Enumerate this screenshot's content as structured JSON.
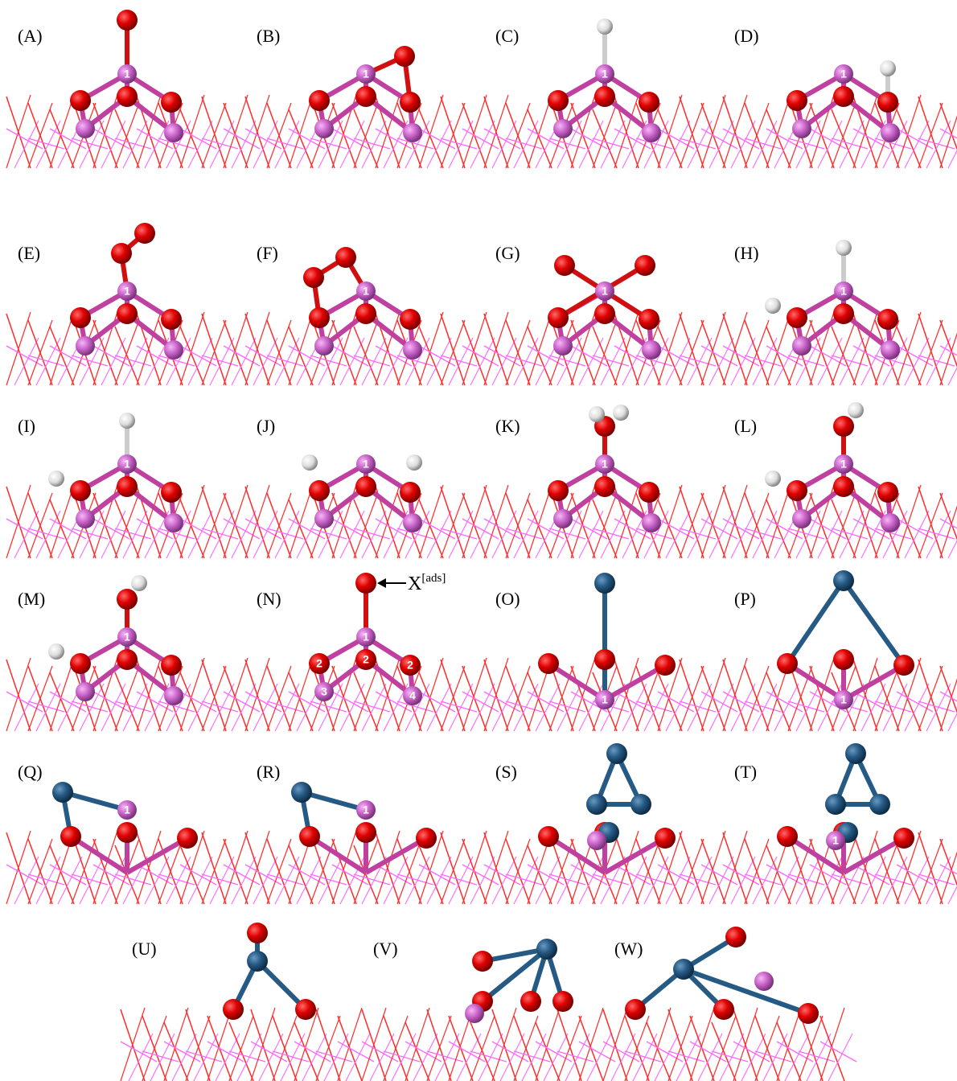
{
  "panels": [
    {
      "label": "(A)",
      "atom_labels": [
        "1"
      ]
    },
    {
      "label": "(B)",
      "atom_labels": [
        "1"
      ]
    },
    {
      "label": "(C)",
      "atom_labels": [
        "1"
      ]
    },
    {
      "label": "(D)",
      "atom_labels": [
        "1"
      ]
    },
    {
      "label": "(E)",
      "atom_labels": [
        "1"
      ]
    },
    {
      "label": "(F)",
      "atom_labels": [
        "1"
      ]
    },
    {
      "label": "(G)",
      "atom_labels": [
        "1"
      ]
    },
    {
      "label": "(H)",
      "atom_labels": [
        "1"
      ]
    },
    {
      "label": "(I)",
      "atom_labels": [
        "1"
      ]
    },
    {
      "label": "(J)",
      "atom_labels": [
        "1"
      ]
    },
    {
      "label": "(K)",
      "atom_labels": [
        "1"
      ]
    },
    {
      "label": "(L)",
      "atom_labels": [
        "1"
      ]
    },
    {
      "label": "(M)",
      "atom_labels": [
        "1"
      ]
    },
    {
      "label": "(N)",
      "atom_labels": [
        "1",
        "2",
        "2",
        "2",
        "3",
        "4"
      ]
    },
    {
      "label": "(O)",
      "atom_labels": [
        "1"
      ]
    },
    {
      "label": "(P)",
      "atom_labels": [
        "1"
      ]
    },
    {
      "label": "(Q)",
      "atom_labels": [
        "1"
      ]
    },
    {
      "label": "(R)",
      "atom_labels": [
        "1"
      ]
    },
    {
      "label": "(S)"
    },
    {
      "label": "(T)",
      "atom_labels": [
        "1"
      ]
    },
    {
      "label": "(U)"
    },
    {
      "label": "(V)"
    },
    {
      "label": "(W)"
    }
  ],
  "annotation": {
    "text": "X",
    "superscript": "[ads]"
  }
}
